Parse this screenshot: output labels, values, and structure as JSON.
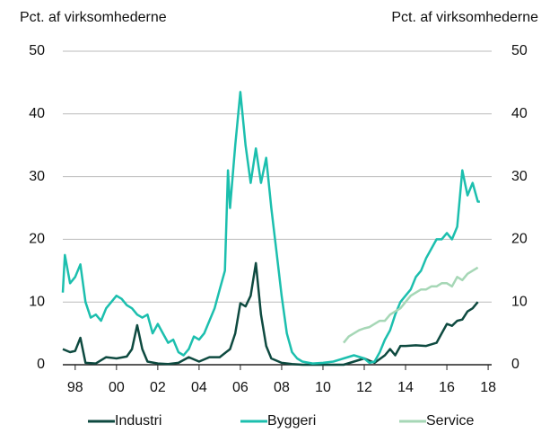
{
  "chart_data": {
    "type": "line",
    "y_label": "Pct. af virksomhederne",
    "y2_label": "Pct. af virksomhederne",
    "xlim": [
      1997.4,
      2018.17
    ],
    "xticks": [
      {
        "value": 1998,
        "label": "98"
      },
      {
        "value": 2000,
        "label": "00"
      },
      {
        "value": 2002,
        "label": "02"
      },
      {
        "value": 2004,
        "label": "04"
      },
      {
        "value": 2006,
        "label": "06"
      },
      {
        "value": 2008,
        "label": "08"
      },
      {
        "value": 2010,
        "label": "10"
      },
      {
        "value": 2012,
        "label": "12"
      },
      {
        "value": 2014,
        "label": "14"
      },
      {
        "value": 2016,
        "label": "16"
      },
      {
        "value": 2018,
        "label": "18"
      }
    ],
    "ylim": [
      0,
      50
    ],
    "yticks": [
      0,
      10,
      20,
      30,
      40,
      50
    ],
    "y2lim": [
      0,
      50
    ],
    "y2ticks": [
      0,
      10,
      20,
      30,
      40,
      50
    ],
    "grid": true,
    "legend": "bottom",
    "series": [
      {
        "name": "Industri",
        "color": "#0e4a40",
        "x": [
          1997.4,
          1997.75,
          1998,
          1998.25,
          1998.5,
          1999,
          1999.5,
          2000,
          2000.5,
          2000.75,
          2001,
          2001.25,
          2001.5,
          2002,
          2002.5,
          2003,
          2003.5,
          2004,
          2004.5,
          2005,
          2005.5,
          2005.75,
          2006,
          2006.25,
          2006.5,
          2006.75,
          2007,
          2007.25,
          2007.5,
          2008,
          2008.5,
          2009,
          2009.5,
          2010,
          2010.5,
          2011,
          2011.5,
          2012,
          2012.5,
          2013,
          2013.25,
          2013.5,
          2013.75,
          2014,
          2014.5,
          2015,
          2015.5,
          2015.75,
          2016,
          2016.25,
          2016.5,
          2016.75,
          2017,
          2017.25,
          2017.5
        ],
        "values": [
          2.5,
          2.0,
          2.2,
          4.3,
          0.3,
          0.2,
          1.2,
          1.0,
          1.3,
          2.5,
          6.3,
          2.5,
          0.5,
          0.2,
          0.1,
          0.3,
          1.2,
          0.5,
          1.2,
          1.2,
          2.5,
          5,
          9.8,
          9.3,
          11,
          16.2,
          8,
          3,
          1,
          0.3,
          0.1,
          0,
          0,
          0,
          0,
          0,
          0.5,
          1,
          0.3,
          1.5,
          2.5,
          1.5,
          3,
          3,
          3.1,
          3,
          3.5,
          5,
          6.5,
          6.2,
          7,
          7.2,
          8.5,
          9,
          10
        ]
      },
      {
        "name": "Byggeri",
        "color": "#1cbfae",
        "x": [
          1997.4,
          1997.5,
          1997.75,
          1998,
          1998.25,
          1998.5,
          1998.75,
          1999,
          1999.25,
          1999.5,
          1999.75,
          2000,
          2000.25,
          2000.5,
          2000.75,
          2001,
          2001.25,
          2001.5,
          2001.75,
          2002,
          2002.25,
          2002.5,
          2002.75,
          2003,
          2003.25,
          2003.5,
          2003.75,
          2004,
          2004.25,
          2004.5,
          2004.75,
          2005,
          2005.25,
          2005.4,
          2005.5,
          2005.75,
          2006,
          2006.25,
          2006.5,
          2006.75,
          2007,
          2007.25,
          2007.5,
          2007.75,
          2008,
          2008.25,
          2008.5,
          2008.75,
          2009,
          2009.5,
          2010,
          2010.5,
          2011,
          2011.5,
          2012,
          2012.25,
          2012.5,
          2012.75,
          2013,
          2013.25,
          2013.5,
          2013.75,
          2014,
          2014.25,
          2014.5,
          2014.75,
          2015,
          2015.25,
          2015.5,
          2015.75,
          2016,
          2016.25,
          2016.5,
          2016.75,
          2017,
          2017.25,
          2017.5,
          2017.6
        ],
        "values": [
          11.5,
          17.5,
          13,
          14,
          16,
          10,
          7.5,
          8,
          7,
          9,
          10,
          11,
          10.5,
          9.5,
          9,
          8,
          7.5,
          8,
          5,
          6.5,
          5,
          3.5,
          4,
          2,
          1.5,
          2.5,
          4.5,
          4,
          5,
          7,
          9,
          12,
          15,
          31,
          25,
          35,
          43.5,
          35,
          29,
          34.5,
          29,
          33,
          25,
          18,
          11,
          5,
          2,
          1,
          0.5,
          0.2,
          0.3,
          0.5,
          1,
          1.5,
          1,
          0.3,
          0.5,
          2,
          4,
          5.5,
          8,
          10,
          11,
          12,
          14,
          15,
          17,
          18.5,
          20,
          20,
          21,
          20,
          22,
          31,
          27,
          29,
          26,
          26
        ]
      },
      {
        "name": "Service",
        "color": "#a6d7b6",
        "x": [
          2011,
          2011.25,
          2011.5,
          2011.75,
          2012,
          2012.25,
          2012.5,
          2012.75,
          2013,
          2013.25,
          2013.5,
          2013.75,
          2014,
          2014.25,
          2014.5,
          2014.75,
          2015,
          2015.25,
          2015.5,
          2015.75,
          2016,
          2016.25,
          2016.5,
          2016.75,
          2017,
          2017.25,
          2017.5
        ],
        "values": [
          3.5,
          4.5,
          5,
          5.5,
          5.8,
          6,
          6.5,
          7,
          7,
          8,
          8.5,
          9,
          10,
          11,
          11.5,
          12,
          12,
          12.5,
          12.5,
          13,
          13,
          12.5,
          14,
          13.5,
          14.5,
          15,
          15.5
        ]
      }
    ]
  }
}
